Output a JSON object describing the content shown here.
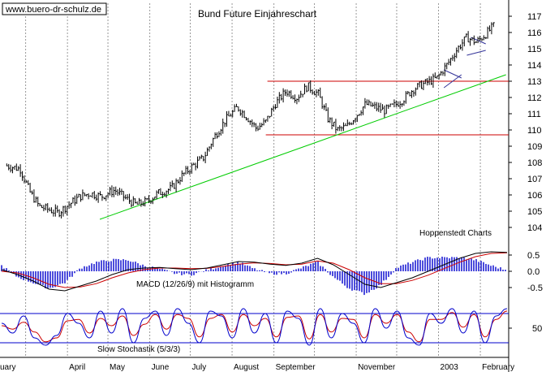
{
  "watermark": "www.buero-dr-schulz.de",
  "source_note": "Hoppenstedt Charts",
  "colors": {
    "price": "#000000",
    "support_resistance": "#cc0000",
    "trendline": "#00cc00",
    "macd_line": "#000000",
    "signal_line": "#cc0000",
    "histogram": "#0000cc",
    "stoch_k": "#0000cc",
    "stoch_d": "#cc0000",
    "stoch_band": "#0000cc",
    "grid": "#999999"
  },
  "chart_data": [
    {
      "type": "bar",
      "subtype": "ohlc",
      "title": "Bund Future Einjahreschart",
      "ylim": [
        103.5,
        117.5
      ],
      "y_ticks": [
        104,
        105,
        106,
        107,
        108,
        109,
        110,
        111,
        112,
        113,
        114,
        115,
        116,
        117
      ],
      "x_ticks": [
        "uary",
        "April",
        "May",
        "June",
        "July",
        "August",
        "September",
        "November",
        "2003",
        "February"
      ],
      "grid": true,
      "price_series": {
        "name": "",
        "x": [
          "2002-02-15",
          "2002-02-25",
          "2002-03-04",
          "2002-03-11",
          "2002-03-18",
          "2002-03-25",
          "2002-04-02",
          "2002-04-10",
          "2002-04-18",
          "2002-04-26",
          "2002-05-06",
          "2002-05-14",
          "2002-05-22",
          "2002-05-30",
          "2002-06-07",
          "2002-06-17",
          "2002-06-25",
          "2002-07-03",
          "2002-07-11",
          "2002-07-19",
          "2002-07-27",
          "2002-08-05",
          "2002-08-12",
          "2002-08-19",
          "2002-08-26",
          "2002-09-02",
          "2002-09-10",
          "2002-09-18",
          "2002-09-26",
          "2002-10-04",
          "2002-10-11",
          "2002-10-18",
          "2002-10-25",
          "2002-11-01",
          "2002-11-08",
          "2002-11-15",
          "2002-11-22",
          "2002-11-29",
          "2002-12-06",
          "2002-12-13",
          "2002-12-20",
          "2002-12-31",
          "2003-01-08",
          "2003-01-15",
          "2003-01-22",
          "2003-01-29",
          "2003-02-05",
          "2003-02-12"
        ],
        "values": [
          107.8,
          107.6,
          106.2,
          105.3,
          105.1,
          104.9,
          105.4,
          105.9,
          106.1,
          105.9,
          106.3,
          105.8,
          105.4,
          105.6,
          106.1,
          106.4,
          107.2,
          107.8,
          108.3,
          109.6,
          110.6,
          111.4,
          110.8,
          110.1,
          110.5,
          111.6,
          112.4,
          112.0,
          112.7,
          112.2,
          110.7,
          110.0,
          110.2,
          110.9,
          111.6,
          111.4,
          111.2,
          111.5,
          111.9,
          112.5,
          112.8,
          113.2,
          114.1,
          115.0,
          115.7,
          115.4,
          115.9,
          116.5
        ]
      },
      "horizontal_lines": [
        113.0,
        109.7
      ],
      "trendline": {
        "x": [
          "2002-04-25",
          "2003-02-20"
        ],
        "y": [
          104.5,
          113.4
        ]
      }
    },
    {
      "type": "line",
      "title": "MACD (12/26/9) mit Histogramm",
      "ylim": [
        -0.8,
        0.8
      ],
      "y_ticks": [
        -0.5,
        0.0,
        0.5
      ],
      "y_tick_labels": [
        "-0.5",
        "0.0",
        "0.5"
      ],
      "series": [
        {
          "name": "",
          "values": [
            0.05,
            -0.1,
            -0.3,
            -0.55,
            -0.6,
            -0.45,
            -0.3,
            -0.1,
            0.05,
            0.1,
            0.12,
            0.08,
            0.05,
            0.1,
            0.2,
            0.3,
            0.28,
            0.22,
            0.18,
            0.25,
            0.4,
            0.2,
            -0.1,
            -0.4,
            -0.5,
            -0.35,
            -0.2,
            0.0,
            0.2,
            0.4,
            0.55,
            0.6,
            0.58
          ]
        },
        {
          "name": "",
          "values": [
            0.0,
            -0.05,
            -0.2,
            -0.4,
            -0.5,
            -0.48,
            -0.38,
            -0.2,
            -0.05,
            0.05,
            0.1,
            0.1,
            0.08,
            0.09,
            0.15,
            0.22,
            0.26,
            0.24,
            0.2,
            0.22,
            0.32,
            0.25,
            0.05,
            -0.2,
            -0.38,
            -0.38,
            -0.28,
            -0.12,
            0.08,
            0.28,
            0.45,
            0.55,
            0.57
          ]
        }
      ]
    },
    {
      "type": "line",
      "title": "Slow Stochastik (5/3/3)",
      "ylim": [
        0,
        100
      ],
      "y_ticks": [
        50
      ],
      "y_tick_labels": [
        "50"
      ],
      "bands": [
        80,
        20
      ],
      "series": [
        {
          "name": "",
          "values": [
            60,
            40,
            75,
            30,
            15,
            35,
            80,
            60,
            30,
            85,
            40,
            90,
            20,
            70,
            85,
            35,
            90,
            60,
            20,
            85,
            75,
            30,
            90,
            40,
            80,
            20,
            85,
            70,
            15,
            90,
            30,
            80,
            60,
            20,
            90,
            50,
            85,
            30,
            15,
            80,
            60,
            90,
            40,
            85,
            20,
            75,
            90
          ]
        },
        {
          "name": "",
          "values": [
            55,
            48,
            62,
            42,
            22,
            30,
            65,
            68,
            40,
            70,
            55,
            75,
            35,
            58,
            78,
            48,
            78,
            70,
            32,
            70,
            78,
            42,
            78,
            55,
            70,
            32,
            72,
            75,
            28,
            78,
            42,
            70,
            68,
            30,
            78,
            60,
            78,
            42,
            22,
            68,
            68,
            82,
            52,
            78,
            32,
            68,
            85
          ]
        }
      ]
    }
  ]
}
